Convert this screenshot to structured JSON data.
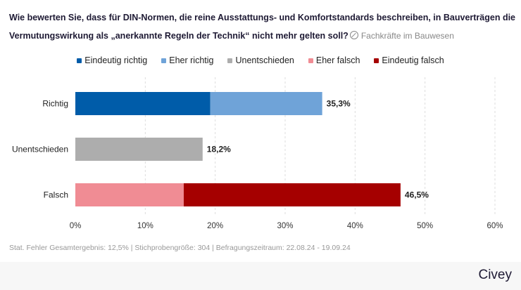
{
  "title": "Wie bewerten Sie, dass für DIN-Normen, die reine Ausstattungs- und Komfortstandards beschreiben, in Bauverträgen die Vermutungswirkung als „anerkannte Regeln der Technik“ nicht mehr gelten soll?",
  "audience_tag": "Fachkräfte im Bauwesen",
  "footer": "Stat. Fehler Gesamtergebnis: 12,5% | Stichprobengröße: 304 | Befragungszeitraum: 22.08.24 - 19.09.24",
  "brand": "Civey",
  "chart_data": {
    "type": "bar",
    "orientation": "horizontal",
    "stacked": true,
    "categories": [
      "Richtig",
      "Unentschieden",
      "Falsch"
    ],
    "series": [
      {
        "name": "Eindeutig richtig",
        "color": "#005ca9",
        "values": [
          19.3,
          0,
          0
        ]
      },
      {
        "name": "Eher richtig",
        "color": "#6fa3d8",
        "values": [
          16.0,
          0,
          0
        ]
      },
      {
        "name": "Unentschieden",
        "color": "#adadad",
        "values": [
          0,
          18.2,
          0
        ]
      },
      {
        "name": "Eher falsch",
        "color": "#f08c94",
        "values": [
          0,
          0,
          15.5
        ]
      },
      {
        "name": "Eindeutig falsch",
        "color": "#a50000",
        "values": [
          0,
          0,
          31.0
        ]
      }
    ],
    "totals": [
      "35,3%",
      "18,2%",
      "46,5%"
    ],
    "xlim": [
      0,
      60
    ],
    "xticks": [
      "0%",
      "10%",
      "20%",
      "30%",
      "40%",
      "50%",
      "60%"
    ],
    "grid": true,
    "legend": "top"
  }
}
